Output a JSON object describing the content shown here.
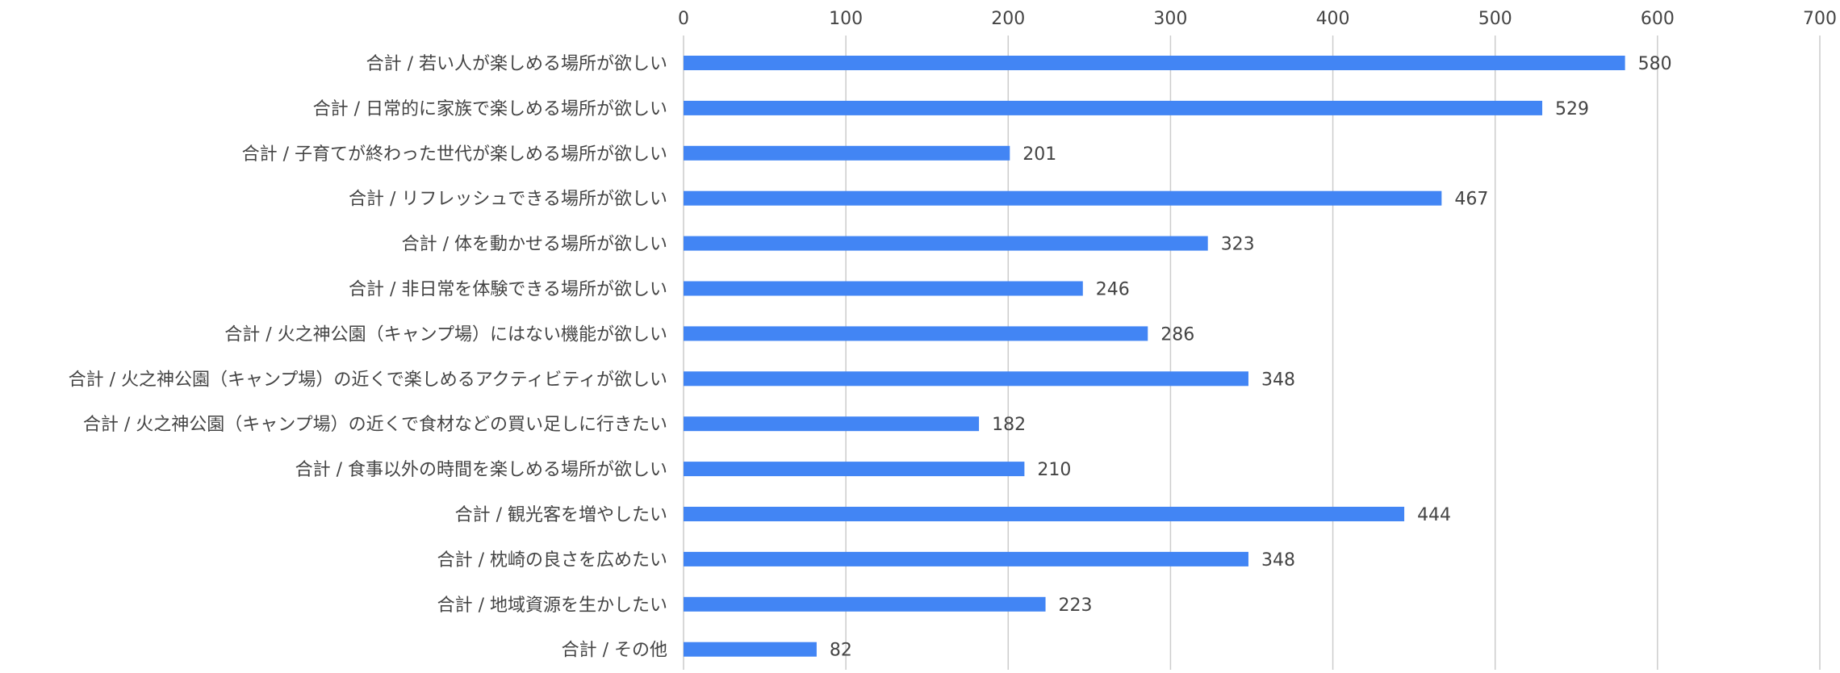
{
  "chart_data": {
    "type": "bar",
    "orientation": "horizontal",
    "title": "",
    "xlabel": "",
    "ylabel": "",
    "xlim": [
      0,
      700
    ],
    "x_ticks": [
      0,
      100,
      200,
      300,
      400,
      500,
      600,
      700
    ],
    "grid": true,
    "legend": "none",
    "bar_color": "#4285f4",
    "gridline_color": "#cccccc",
    "text_color": "#444444",
    "categories": [
      "合計 / 若い人が楽しめる場所が欲しい",
      "合計 / 日常的に家族で楽しめる場所が欲しい",
      "合計 / 子育てが終わった世代が楽しめる場所が欲しい",
      "合計 / リフレッシュできる場所が欲しい",
      "合計 / 体を動かせる場所が欲しい",
      "合計 / 非日常を体験できる場所が欲しい",
      "合計 / 火之神公園（キャンプ場）にはない機能が欲しい",
      "合計 / 火之神公園（キャンプ場）の近くで楽しめるアクティビティが欲しい",
      "合計 / 火之神公園（キャンプ場）の近くで食材などの買い足しに行きたい",
      "合計 / 食事以外の時間を楽しめる場所が欲しい",
      "合計 / 観光客を増やしたい",
      "合計 / 枕崎の良さを広めたい",
      "合計 / 地域資源を生かしたい",
      "合計 / その他"
    ],
    "values": [
      580,
      529,
      201,
      467,
      323,
      246,
      286,
      348,
      182,
      210,
      444,
      348,
      223,
      82
    ]
  }
}
